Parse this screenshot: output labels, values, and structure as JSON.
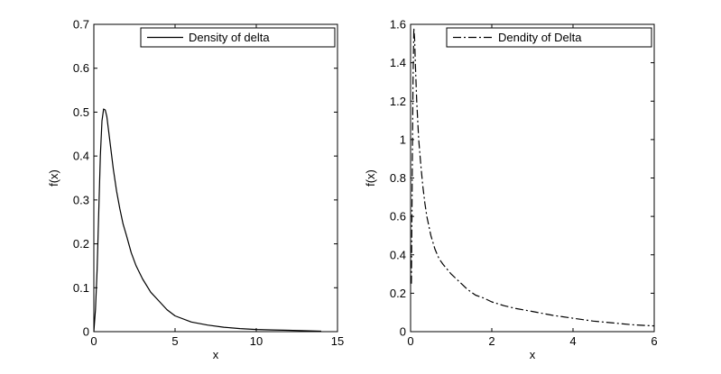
{
  "chart_data": [
    {
      "type": "line",
      "xlabel": "x",
      "ylabel": "f(x)",
      "xlim": [
        0,
        15
      ],
      "ylim": [
        0,
        0.7
      ],
      "x_ticks": [
        0,
        5,
        10,
        15
      ],
      "x_tick_labels": [
        "0",
        "5",
        "10",
        "15"
      ],
      "y_ticks": [
        0,
        0.1,
        0.2,
        0.3,
        0.4,
        0.5,
        0.6,
        0.7
      ],
      "y_tick_labels": [
        "0",
        "0.1",
        "0.2",
        "0.3",
        "0.4",
        "0.5",
        "0.6",
        "0.7"
      ],
      "grid": false,
      "legend_position": "top-right",
      "series": [
        {
          "name": "Density of delta",
          "line_style": "solid",
          "color": "#000000",
          "x": [
            0,
            0.1,
            0.2,
            0.3,
            0.4,
            0.5,
            0.6,
            0.7,
            0.8,
            0.9,
            1.0,
            1.2,
            1.4,
            1.6,
            1.8,
            2.0,
            2.3,
            2.6,
            3.0,
            3.5,
            4.0,
            4.5,
            5.0,
            6.0,
            7.0,
            8.0,
            9.0,
            10.0,
            11.0,
            12.0,
            13.0,
            14.0
          ],
          "y": [
            0,
            0.05,
            0.14,
            0.27,
            0.4,
            0.48,
            0.507,
            0.505,
            0.49,
            0.46,
            0.43,
            0.37,
            0.32,
            0.28,
            0.245,
            0.22,
            0.18,
            0.15,
            0.12,
            0.09,
            0.07,
            0.05,
            0.036,
            0.022,
            0.015,
            0.01,
            0.007,
            0.005,
            0.004,
            0.003,
            0.002,
            0.001
          ]
        }
      ]
    },
    {
      "type": "line",
      "xlabel": "x",
      "ylabel": "f(x)",
      "xlim": [
        0,
        6
      ],
      "ylim": [
        0,
        1.6
      ],
      "x_ticks": [
        0,
        2,
        4,
        6
      ],
      "x_tick_labels": [
        "0",
        "2",
        "4",
        "6"
      ],
      "y_ticks": [
        0,
        0.2,
        0.4,
        0.6,
        0.8,
        1.0,
        1.2,
        1.4,
        1.6
      ],
      "y_tick_labels": [
        "0",
        "0.2",
        "0.4",
        "0.6",
        "0.8",
        "1",
        "1.2",
        "1.4",
        "1.6"
      ],
      "grid": false,
      "legend_position": "top-right",
      "series": [
        {
          "name": "Dendity of Delta",
          "line_style": "dash-dot",
          "color": "#000000",
          "x": [
            0.02,
            0.04,
            0.06,
            0.08,
            0.1,
            0.12,
            0.15,
            0.2,
            0.25,
            0.3,
            0.35,
            0.4,
            0.5,
            0.6,
            0.7,
            0.8,
            1.0,
            1.2,
            1.4,
            1.6,
            1.8,
            2.0,
            2.3,
            2.6,
            3.0,
            3.5,
            4.0,
            4.5,
            5.0,
            5.5,
            6.0
          ],
          "y": [
            0.25,
            0.8,
            1.3,
            1.58,
            1.52,
            1.38,
            1.2,
            1.0,
            0.87,
            0.76,
            0.67,
            0.6,
            0.5,
            0.43,
            0.38,
            0.35,
            0.3,
            0.26,
            0.22,
            0.19,
            0.175,
            0.155,
            0.135,
            0.12,
            0.105,
            0.085,
            0.07,
            0.055,
            0.045,
            0.035,
            0.03
          ]
        }
      ]
    }
  ]
}
